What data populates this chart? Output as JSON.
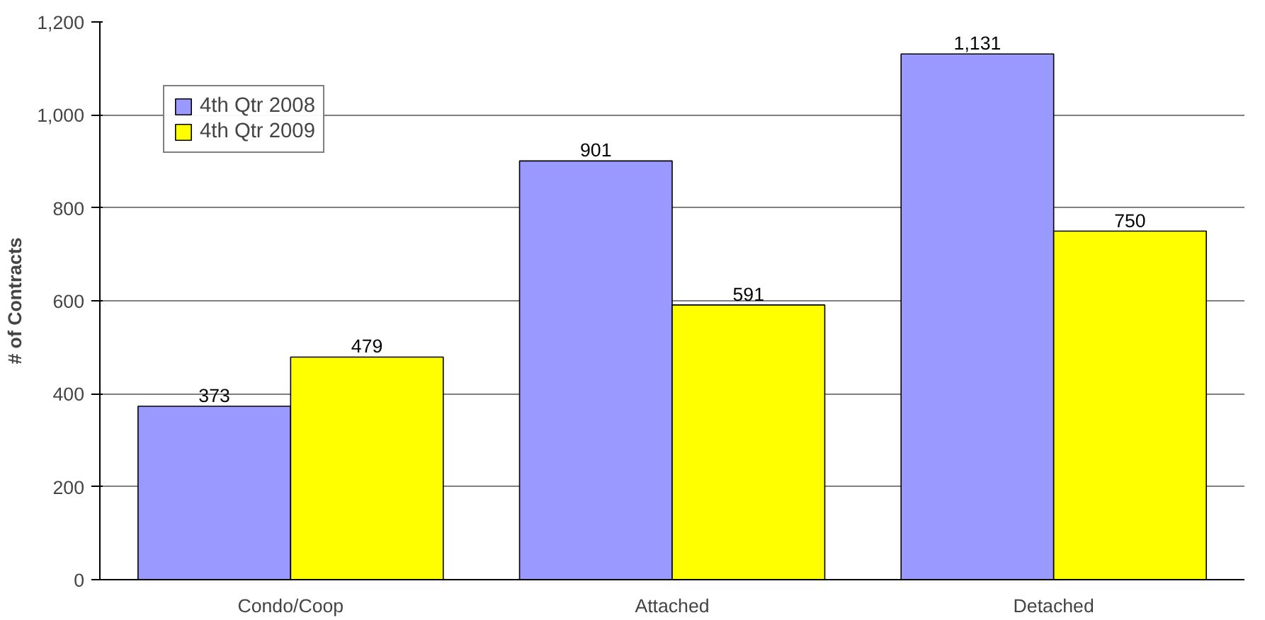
{
  "chart_data": {
    "type": "bar",
    "ylabel": "# of Contracts",
    "categories": [
      "Condo/Coop",
      "Attached",
      "Detached"
    ],
    "series": [
      {
        "name": "4th Qtr 2008",
        "color": "#9999ff",
        "values": [
          373,
          901,
          1131
        ],
        "value_labels": [
          "373",
          "901",
          "1,131"
        ]
      },
      {
        "name": "4th Qtr 2009",
        "color": "#ffff00",
        "values": [
          479,
          591,
          750
        ],
        "value_labels": [
          "479",
          "591",
          "750"
        ]
      }
    ],
    "ylim": [
      0,
      1200
    ],
    "yticks": [
      0,
      200,
      400,
      600,
      800,
      {
        "value": 1000,
        "label": "1,000"
      },
      {
        "value": 1200,
        "label": "1,200"
      }
    ],
    "grid": "y",
    "legend": "top left"
  }
}
